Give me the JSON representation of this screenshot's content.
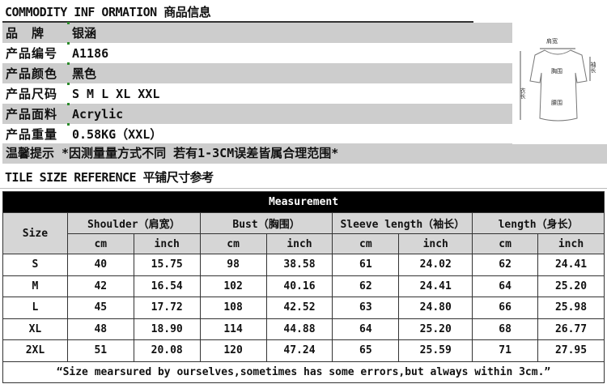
{
  "header": {
    "title": "COMMODITY INF ORMATION 商品信息"
  },
  "info": [
    {
      "label": "品　牌",
      "value": "银涵"
    },
    {
      "label": "产品编号",
      "value": "A1186"
    },
    {
      "label": "产品颜色",
      "value": "黑色"
    },
    {
      "label": "产品尺码",
      "value": "S M L XL XXL"
    },
    {
      "label": "产品面料",
      "value": "Acrylic"
    },
    {
      "label": "产品重量",
      "value": "0.58KG（XXL）"
    }
  ],
  "tip": "温馨提示 *因测量量方式不同 若有1-3CM误差皆属合理范围*",
  "diagram": {
    "shoulder": "肩宽",
    "sleeve": "袖长",
    "bust": "胸围",
    "length": "衣长",
    "waist": "腰围"
  },
  "subtitle": "TILE SIZE REFERENCE 平铺尺寸参考",
  "table": {
    "title": "Measurement",
    "size_header": "Size",
    "groups": [
      "Shoulder（肩宽）",
      "Bust（胸围）",
      "Sleeve length（袖长）",
      "length（身长）"
    ],
    "units": [
      "cm",
      "inch",
      "cm",
      "inch",
      "cm",
      "inch",
      "cm",
      "inch"
    ],
    "rows": [
      [
        "S",
        "40",
        "15.75",
        "98",
        "38.58",
        "61",
        "24.02",
        "62",
        "24.41"
      ],
      [
        "M",
        "42",
        "16.54",
        "102",
        "40.16",
        "62",
        "24.41",
        "64",
        "25.20"
      ],
      [
        "L",
        "45",
        "17.72",
        "108",
        "42.52",
        "63",
        "24.80",
        "66",
        "25.98"
      ],
      [
        "XL",
        "48",
        "18.90",
        "114",
        "44.88",
        "64",
        "25.20",
        "68",
        "26.77"
      ],
      [
        "2XL",
        "51",
        "20.08",
        "120",
        "47.24",
        "65",
        "25.59",
        "71",
        "27.95"
      ]
    ],
    "footnote": "“Size mearsured by ourselves,sometimes has some errors,but always within 3cm.”"
  }
}
